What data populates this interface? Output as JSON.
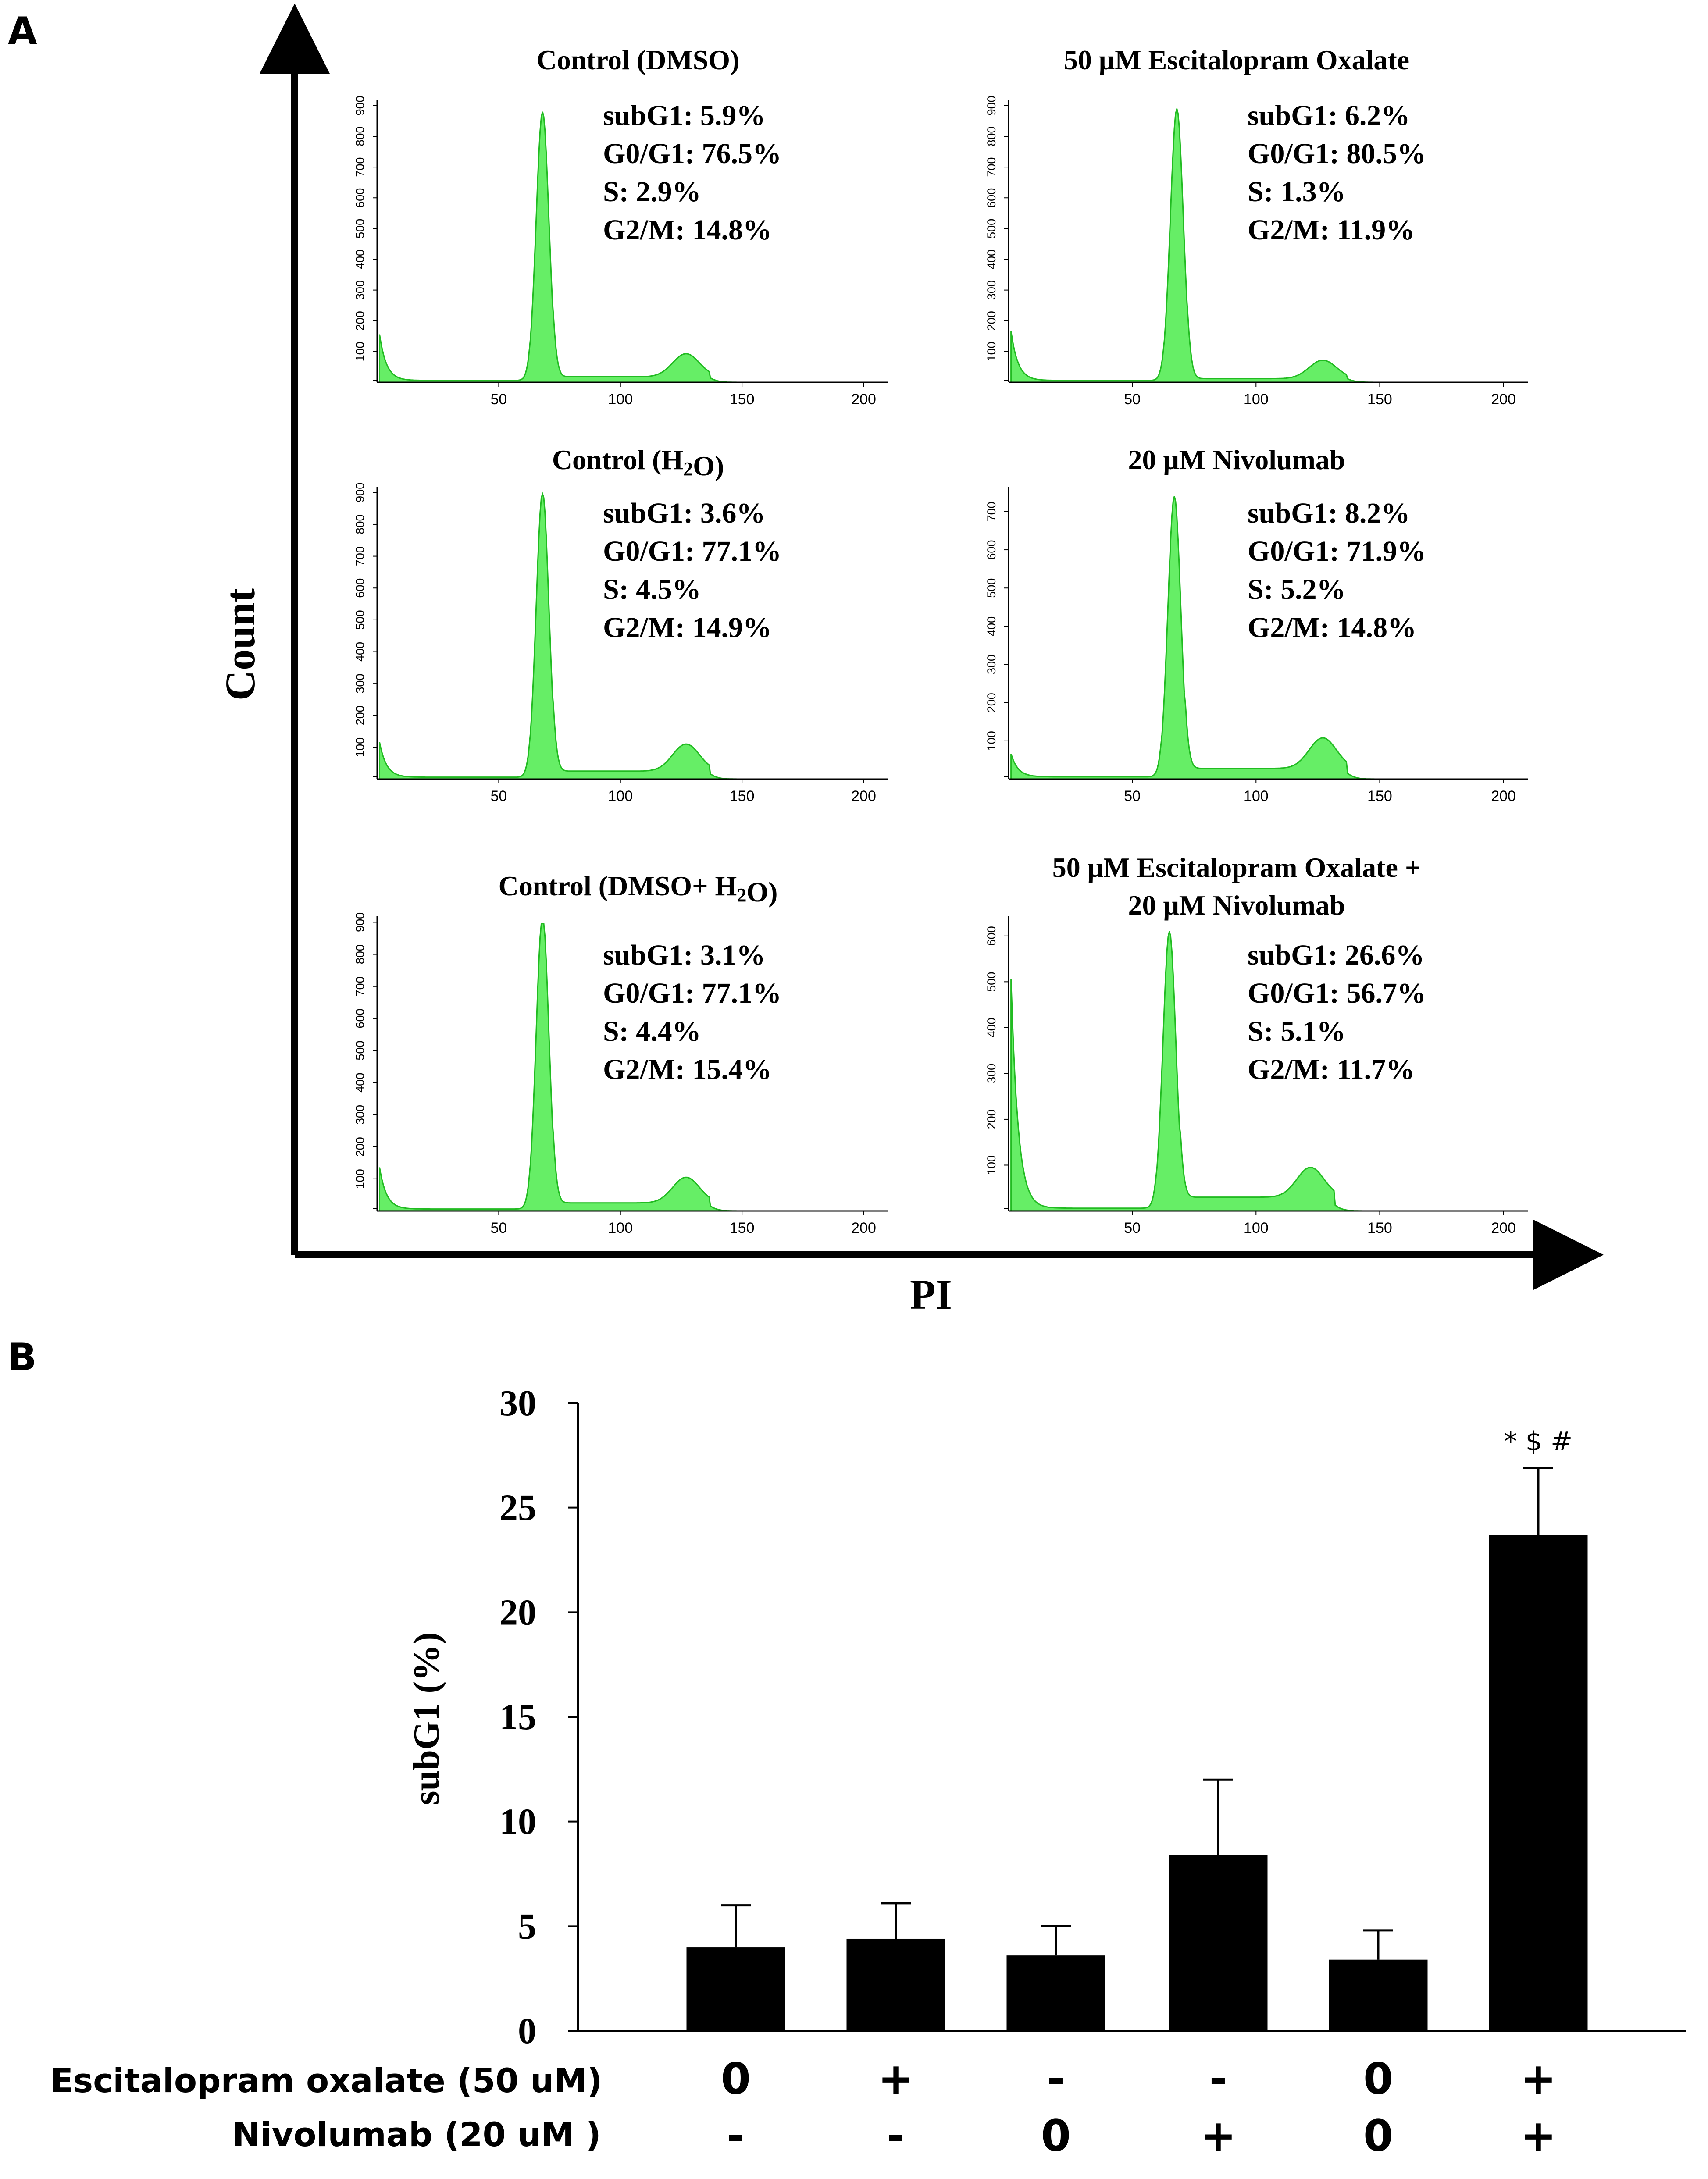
{
  "panel_a_letter": "A",
  "panel_b_letter": "B",
  "chart_data": [
    {
      "type": "histogram-grid",
      "xlabel": "PI",
      "ylabel": "Count",
      "x_ticks": [
        "50",
        "100",
        "150",
        "200"
      ],
      "histograms": [
        {
          "title": "Control (DMSO)",
          "title_parts": [
            {
              "text": "Control (DMSO)"
            }
          ],
          "y_ticks": [
            "100",
            "200",
            "300",
            "400",
            "500",
            "600",
            "700",
            "800",
            "900"
          ],
          "ymax": 900,
          "stats": [
            "subG1: 5.9%",
            "G0/G1: 76.5%",
            "S: 2.9%",
            "G2/M: 14.8%"
          ],
          "values": {
            "subG1": 5.9,
            "G0G1": 76.5,
            "S": 2.9,
            "G2M": 14.8
          },
          "profile": {
            "debris": 150,
            "g1_pos": 68,
            "g1_peak": 880,
            "s_level": 18,
            "g2_pos": 127,
            "g2_peak": 75
          }
        },
        {
          "title": "50 μM Escitalopram Oxalate",
          "title_parts": [
            {
              "text": "50 μM Escitalopram Oxalate"
            }
          ],
          "y_ticks": [
            "100",
            "200",
            "300",
            "400",
            "500",
            "600",
            "700",
            "800",
            "900"
          ],
          "ymax": 900,
          "stats": [
            "subG1: 6.2%",
            "G0/G1: 80.5%",
            "S: 1.3%",
            "G2/M: 11.9%"
          ],
          "values": {
            "subG1": 6.2,
            "G0G1": 80.5,
            "S": 1.3,
            "G2M": 11.9
          },
          "profile": {
            "debris": 160,
            "g1_pos": 68,
            "g1_peak": 890,
            "s_level": 12,
            "g2_pos": 127,
            "g2_peak": 60
          }
        },
        {
          "title": "Control (H2O)",
          "title_parts": [
            {
              "text": "Control (H"
            },
            {
              "text": "2",
              "sub": true
            },
            {
              "text": "O)"
            }
          ],
          "y_ticks": [
            "100",
            "200",
            "300",
            "400",
            "500",
            "600",
            "700",
            "800",
            "900"
          ],
          "ymax": 900,
          "stats": [
            "subG1: 3.6%",
            "G0/G1: 77.1%",
            "S: 4.5%",
            "G2/M: 14.9%"
          ],
          "values": {
            "subG1": 3.6,
            "G0G1": 77.1,
            "S": 4.5,
            "G2M": 14.9
          },
          "profile": {
            "debris": 110,
            "g1_pos": 68,
            "g1_peak": 900,
            "s_level": 25,
            "g2_pos": 127,
            "g2_peak": 85
          }
        },
        {
          "title": "20 μM Nivolumab",
          "title_parts": [
            {
              "text": "20 μM Nivolumab"
            }
          ],
          "y_ticks": [
            "100",
            "200",
            "300",
            "400",
            "500",
            "600",
            "700"
          ],
          "ymax": 750,
          "stats": [
            "subG1: 8.2%",
            "G0/G1: 71.9%",
            "S: 5.2%",
            "G2/M: 14.8%"
          ],
          "values": {
            "subG1": 8.2,
            "G0G1": 71.9,
            "S": 5.2,
            "G2M": 14.8
          },
          "profile": {
            "debris": 60,
            "g1_pos": 67,
            "g1_peak": 740,
            "s_level": 28,
            "g2_pos": 127,
            "g2_peak": 80
          }
        },
        {
          "title": "Control (DMSO+ H2O)",
          "title_parts": [
            {
              "text": "Control (DMSO+ H"
            },
            {
              "text": "2",
              "sub": true
            },
            {
              "text": "O)"
            }
          ],
          "y_ticks": [
            "100",
            "200",
            "300",
            "400",
            "500",
            "600",
            "700",
            "800",
            "900"
          ],
          "ymax": 900,
          "stats": [
            "subG1: 3.1%",
            "G0/G1: 77.1%",
            "S: 4.4%",
            "G2/M: 15.4%"
          ],
          "values": {
            "subG1": 3.1,
            "G0G1": 77.1,
            "S": 4.4,
            "G2M": 15.4
          },
          "profile": {
            "debris": 130,
            "g1_pos": 68,
            "g1_peak": 920,
            "s_level": 25,
            "g2_pos": 127,
            "g2_peak": 80
          }
        },
        {
          "title": "50 μM Escitalopram Oxalate + 20 μM Nivolumab",
          "title_lines": [
            "50 μM Escitalopram Oxalate +",
            "20 μM Nivolumab"
          ],
          "y_ticks": [
            "100",
            "200",
            "300",
            "400",
            "500",
            "600"
          ],
          "ymax": 630,
          "stats": [
            "subG1: 26.6%",
            "G0/G1: 56.7%",
            "S: 5.1%",
            "G2/M: 11.7%"
          ],
          "values": {
            "subG1": 26.6,
            "G0G1": 56.7,
            "S": 5.1,
            "G2M": 11.7
          },
          "profile": {
            "debris": 500,
            "g1_pos": 65,
            "g1_peak": 610,
            "s_level": 30,
            "g2_pos": 122,
            "g2_peak": 65
          }
        }
      ]
    },
    {
      "type": "bar",
      "ylabel": "subG1 (%)",
      "ylim": [
        0,
        30
      ],
      "y_ticks": [
        0,
        5,
        10,
        15,
        20,
        25,
        30
      ],
      "bars": [
        {
          "value": 4.0,
          "error": 2.0,
          "escitalopram": "0",
          "nivolumab": "-"
        },
        {
          "value": 4.4,
          "error": 1.7,
          "escitalopram": "+",
          "nivolumab": "-"
        },
        {
          "value": 3.6,
          "error": 1.4,
          "escitalopram": "-",
          "nivolumab": "0"
        },
        {
          "value": 8.4,
          "error": 3.6,
          "escitalopram": "-",
          "nivolumab": "+"
        },
        {
          "value": 3.4,
          "error": 1.4,
          "escitalopram": "0",
          "nivolumab": "0"
        },
        {
          "value": 23.7,
          "error": 3.2,
          "escitalopram": "+",
          "nivolumab": "+"
        }
      ],
      "significance": {
        "bar_index": 5,
        "text": "* $ #"
      },
      "row_labels": {
        "escitalopram": "Escitalopram oxalate (50 uM)",
        "nivolumab": "Nivolumab (20 uM )"
      },
      "colors": {
        "bar": "#000000"
      }
    }
  ],
  "colors": {
    "histogram_fill": "#66ee66",
    "histogram_stroke": "#22bb22",
    "axis": "#000000"
  }
}
